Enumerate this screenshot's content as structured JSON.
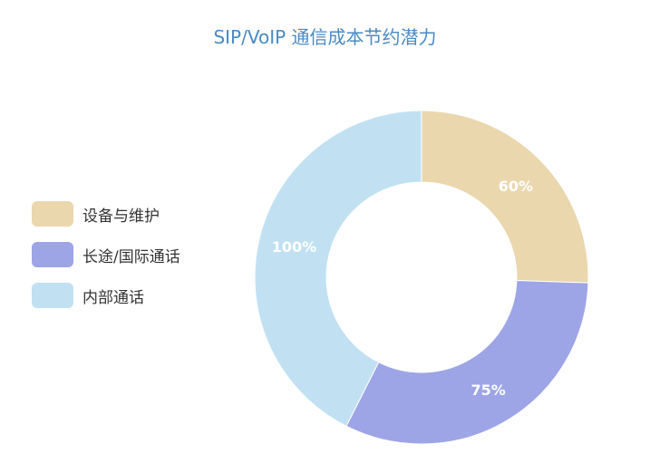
{
  "chart_data": {
    "type": "pie",
    "title": "SIP/VoIP 通信成本节约潜力",
    "categories": [
      "设备与维护",
      "长途/国际通话",
      "内部通话"
    ],
    "values": [
      60,
      75,
      100
    ],
    "value_labels": [
      "60%",
      "75%",
      "100%"
    ],
    "colors": [
      "#ead7ad",
      "#9da5e6",
      "#c1e1f3"
    ],
    "donut": true,
    "start_angle_deg": 0,
    "direction": "clockwise",
    "legend_position": "left"
  }
}
